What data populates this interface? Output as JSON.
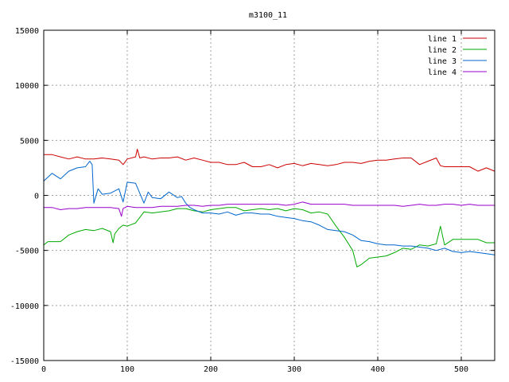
{
  "chart_data": {
    "type": "line",
    "title": "m3100_11",
    "xlabel": "",
    "ylabel": "",
    "xlim": [
      0,
      540
    ],
    "ylim": [
      -15000,
      15000
    ],
    "x_ticks": [
      0,
      100,
      200,
      300,
      400,
      500
    ],
    "y_ticks": [
      -15000,
      -10000,
      -5000,
      0,
      5000,
      10000,
      15000
    ],
    "grid": true,
    "legend_position": "top-right",
    "series": [
      {
        "name": "line 1",
        "color": "#cc0000",
        "x": [
          0,
          10,
          20,
          30,
          40,
          50,
          60,
          70,
          80,
          90,
          95,
          100,
          110,
          112,
          115,
          120,
          130,
          140,
          150,
          160,
          170,
          180,
          190,
          200,
          210,
          220,
          230,
          240,
          250,
          260,
          270,
          280,
          290,
          300,
          310,
          320,
          330,
          340,
          350,
          360,
          370,
          380,
          390,
          400,
          410,
          420,
          430,
          440,
          450,
          460,
          470,
          475,
          480,
          490,
          500,
          510,
          520,
          530,
          540
        ],
        "values": [
          3700,
          3700,
          3500,
          3300,
          3500,
          3300,
          3300,
          3400,
          3300,
          3200,
          2800,
          3300,
          3500,
          4200,
          3400,
          3500,
          3300,
          3400,
          3400,
          3500,
          3200,
          3400,
          3200,
          3000,
          3000,
          2800,
          2800,
          3000,
          2600,
          2600,
          2800,
          2500,
          2800,
          2900,
          2700,
          2900,
          2800,
          2700,
          2800,
          3000,
          3000,
          2900,
          3100,
          3200,
          3200,
          3300,
          3400,
          3400,
          2800,
          3100,
          3400,
          2700,
          2600,
          2600,
          2600,
          2600,
          2200,
          2500,
          2200
        ]
      },
      {
        "name": "line 2",
        "color": "#00aa00",
        "x": [
          0,
          5,
          10,
          20,
          30,
          40,
          50,
          60,
          70,
          80,
          83,
          85,
          90,
          95,
          100,
          110,
          120,
          130,
          140,
          150,
          160,
          170,
          180,
          190,
          200,
          210,
          220,
          230,
          240,
          250,
          260,
          270,
          280,
          290,
          300,
          310,
          320,
          330,
          340,
          350,
          360,
          370,
          375,
          380,
          390,
          400,
          410,
          420,
          430,
          440,
          450,
          460,
          470,
          475,
          480,
          490,
          500,
          510,
          520,
          530,
          540
        ],
        "values": [
          -4500,
          -4200,
          -4200,
          -4200,
          -3600,
          -3300,
          -3100,
          -3200,
          -3000,
          -3300,
          -4300,
          -3500,
          -3000,
          -2700,
          -2800,
          -2500,
          -1500,
          -1600,
          -1500,
          -1400,
          -1200,
          -1200,
          -1400,
          -1500,
          -1300,
          -1200,
          -1100,
          -1100,
          -1400,
          -1300,
          -1200,
          -1300,
          -1200,
          -1400,
          -1200,
          -1300,
          -1600,
          -1500,
          -1700,
          -2800,
          -3800,
          -5000,
          -6500,
          -6300,
          -5700,
          -5600,
          -5500,
          -5200,
          -4800,
          -4900,
          -4500,
          -4600,
          -4400,
          -2800,
          -4500,
          -4000,
          -4000,
          -4000,
          -4000,
          -4300,
          -4300
        ]
      },
      {
        "name": "line 3",
        "color": "#0066cc",
        "x": [
          0,
          10,
          20,
          30,
          40,
          50,
          55,
          58,
          60,
          65,
          70,
          80,
          90,
          95,
          100,
          110,
          120,
          125,
          130,
          140,
          150,
          160,
          165,
          170,
          175,
          180,
          190,
          200,
          210,
          220,
          230,
          240,
          250,
          260,
          270,
          280,
          290,
          300,
          310,
          320,
          330,
          340,
          350,
          360,
          370,
          380,
          390,
          400,
          410,
          420,
          430,
          440,
          450,
          460,
          470,
          480,
          490,
          500,
          510,
          520,
          530,
          540
        ],
        "values": [
          1300,
          2000,
          1500,
          2200,
          2500,
          2600,
          3100,
          2800,
          -700,
          600,
          100,
          200,
          600,
          -600,
          1200,
          1100,
          -700,
          300,
          -200,
          -300,
          300,
          -200,
          -100,
          -700,
          -1100,
          -1300,
          -1600,
          -1600,
          -1700,
          -1500,
          -1800,
          -1600,
          -1600,
          -1700,
          -1700,
          -1900,
          -2000,
          -2100,
          -2300,
          -2400,
          -2700,
          -3100,
          -3200,
          -3300,
          -3600,
          -4100,
          -4200,
          -4400,
          -4500,
          -4500,
          -4600,
          -4600,
          -4700,
          -4800,
          -5000,
          -4800,
          -5100,
          -5200,
          -5100,
          -5200,
          -5300,
          -5400
        ]
      },
      {
        "name": "line 4",
        "color": "#9900cc",
        "x": [
          0,
          10,
          20,
          30,
          40,
          50,
          60,
          70,
          80,
          90,
          93,
          95,
          100,
          110,
          120,
          130,
          140,
          150,
          160,
          170,
          180,
          190,
          200,
          210,
          220,
          230,
          240,
          250,
          260,
          270,
          280,
          290,
          300,
          310,
          320,
          330,
          340,
          350,
          360,
          370,
          380,
          390,
          400,
          410,
          420,
          430,
          440,
          450,
          460,
          470,
          480,
          490,
          500,
          510,
          520,
          530,
          540
        ],
        "values": [
          -1100,
          -1100,
          -1300,
          -1200,
          -1200,
          -1100,
          -1100,
          -1100,
          -1100,
          -1200,
          -1900,
          -1200,
          -1000,
          -1100,
          -1100,
          -1100,
          -1000,
          -1000,
          -1000,
          -900,
          -900,
          -1000,
          -900,
          -900,
          -800,
          -800,
          -800,
          -800,
          -800,
          -800,
          -800,
          -900,
          -800,
          -600,
          -800,
          -800,
          -800,
          -800,
          -800,
          -900,
          -900,
          -900,
          -900,
          -900,
          -900,
          -1000,
          -900,
          -800,
          -900,
          -900,
          -800,
          -800,
          -900,
          -800,
          -900,
          -900,
          -900
        ]
      }
    ]
  }
}
